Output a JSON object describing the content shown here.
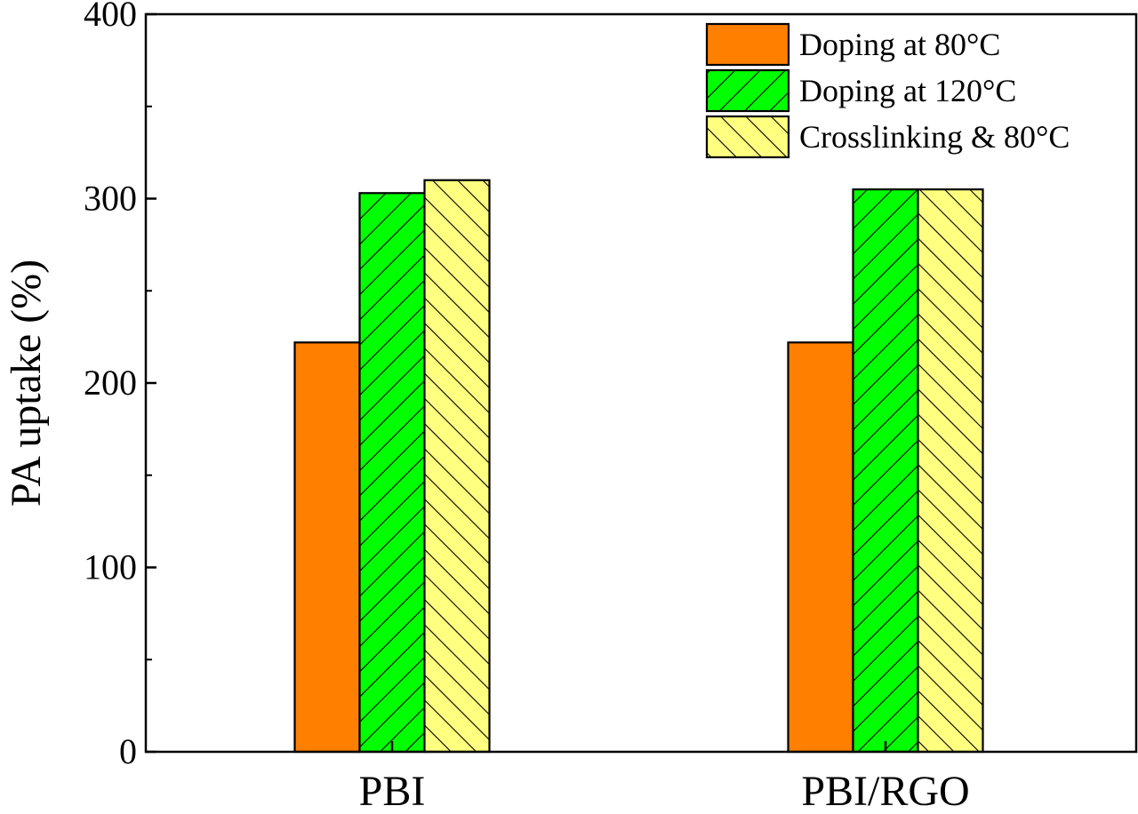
{
  "chart_data": {
    "type": "bar",
    "title": "",
    "xlabel": "",
    "ylabel": "PA uptake (%)",
    "ylim": [
      0,
      400
    ],
    "yticks": [
      0,
      100,
      200,
      300,
      400
    ],
    "categories": [
      "PBI",
      "PBI/RGO"
    ],
    "series": [
      {
        "name": "Doping at 80°C",
        "values": [
          222,
          222
        ],
        "color": "#ff8000",
        "pattern": "none"
      },
      {
        "name": "Doping at 120°C",
        "values": [
          303,
          305
        ],
        "color": "#00ff00",
        "pattern": "forward-hatch"
      },
      {
        "name": "Crosslinking & 80°C",
        "values": [
          310,
          305
        ],
        "color": "#ffff80",
        "pattern": "back-hatch"
      }
    ],
    "legend_position": "top-right",
    "grid": false
  }
}
